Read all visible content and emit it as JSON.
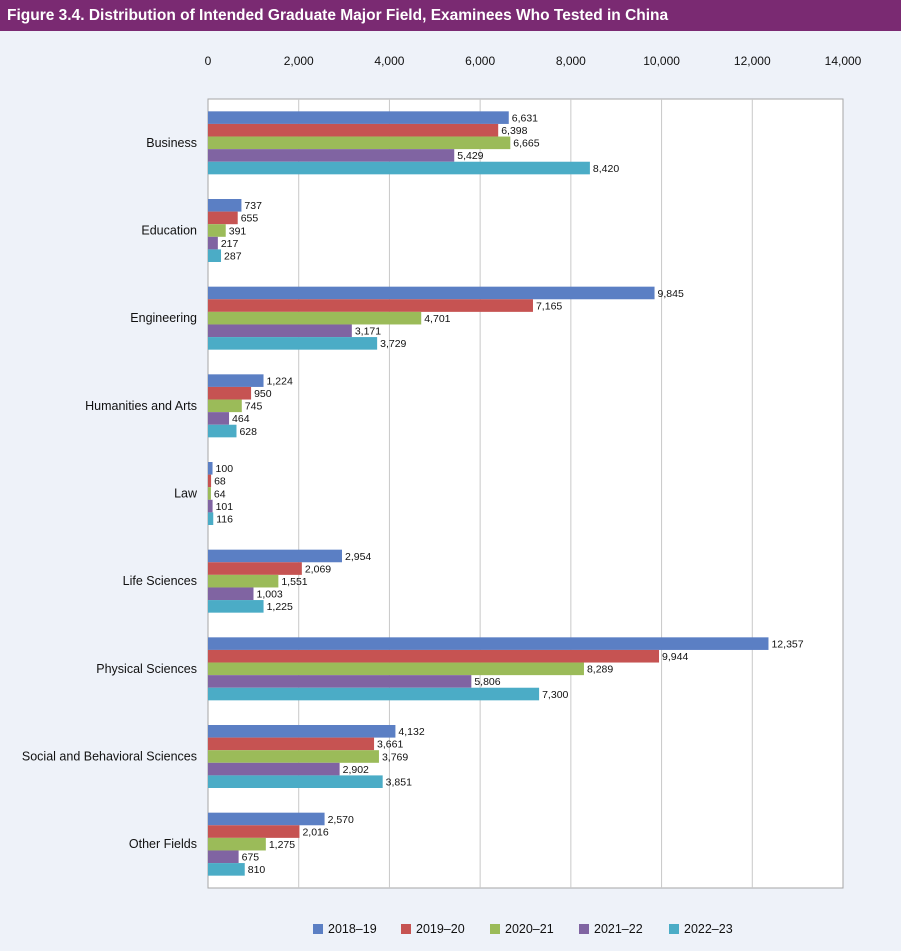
{
  "figure": {
    "title": "Figure 3.4. Distribution of Intended Graduate Major Field, Examinees Who Tested in China"
  },
  "chart_data": {
    "type": "bar",
    "orientation": "horizontal",
    "title": "Figure 3.4. Distribution of Intended Graduate Major Field, Examinees Who Tested in China",
    "xlabel": "",
    "ylabel": "",
    "xlim": [
      0,
      14000
    ],
    "x_ticks": [
      "0",
      "2,000",
      "4,000",
      "6,000",
      "8,000",
      "10,000",
      "12,000",
      "14,000"
    ],
    "x_axis_position": "top",
    "grid": true,
    "legend_position": "bottom",
    "categories": [
      "Business",
      "Education",
      "Engineering",
      "Humanities and Arts",
      "Law",
      "Life Sciences",
      "Physical Sciences",
      "Social and Behavioral Sciences",
      "Other Fields"
    ],
    "series": [
      {
        "name": "2018–19",
        "color": "#5b7fc4",
        "values": [
          6631,
          737,
          9845,
          1224,
          100,
          2954,
          12357,
          4132,
          2570
        ],
        "labels": [
          "6,631",
          "737",
          "9,845",
          "1,224",
          "100",
          "2,954",
          "12,357",
          "4,132",
          "2,570"
        ]
      },
      {
        "name": "2019–20",
        "color": "#c65352",
        "values": [
          6398,
          655,
          7165,
          950,
          68,
          2069,
          9944,
          3661,
          2016
        ],
        "labels": [
          "6,398",
          "655",
          "7,165",
          "950",
          "68",
          "2,069",
          "9,944",
          "3,661",
          "2,016"
        ]
      },
      {
        "name": "2020–21",
        "color": "#9bbb59",
        "values": [
          6665,
          391,
          4701,
          745,
          64,
          1551,
          8289,
          3769,
          1275
        ],
        "labels": [
          "6,665",
          "391",
          "4,701",
          "745",
          "64",
          "1,551",
          "8,289",
          "3,769",
          "1,275"
        ]
      },
      {
        "name": "2021–22",
        "color": "#8064a2",
        "values": [
          5429,
          217,
          3171,
          464,
          101,
          1003,
          5806,
          2902,
          675
        ],
        "labels": [
          "5,429",
          "217",
          "3,171",
          "464",
          "101",
          "1,003",
          "5,806",
          "2,902",
          "675"
        ]
      },
      {
        "name": "2022–23",
        "color": "#4bacc6",
        "values": [
          8420,
          287,
          3729,
          628,
          116,
          1225,
          7300,
          3851,
          810
        ],
        "labels": [
          "8,420",
          "287",
          "3,729",
          "628",
          "116",
          "1,225",
          "7,300",
          "3,851",
          "810"
        ]
      }
    ]
  }
}
